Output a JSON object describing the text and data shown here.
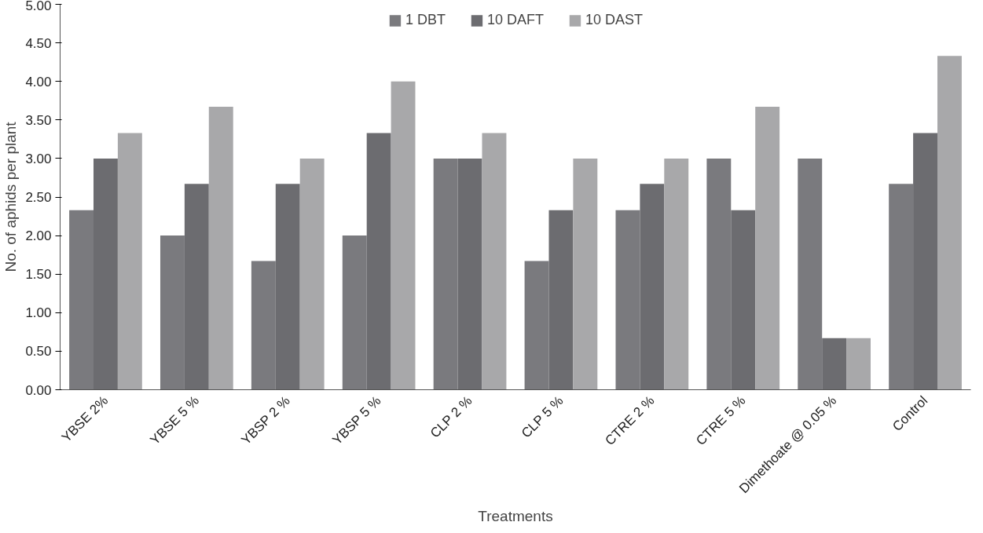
{
  "chart_data": {
    "type": "bar",
    "xlabel": "Treatments",
    "ylabel": "No. of aphids per plant",
    "categories": [
      "YBSE 2%",
      "YBSE 5 %",
      "YBSP 2 %",
      "YBSP 5 %",
      "CLP 2 %",
      "CLP 5 %",
      "CTRE 2 %",
      "CTRE 5 %",
      "Dimethoate @ 0.05 %",
      "Control"
    ],
    "series": [
      {
        "name": "1 DBT",
        "color": "#7a7a7e",
        "values": [
          2.33,
          2.0,
          1.67,
          2.0,
          3.0,
          1.67,
          2.33,
          3.0,
          3.0,
          2.67
        ]
      },
      {
        "name": "10 DAFT",
        "color": "#6c6c70",
        "values": [
          3.0,
          2.67,
          2.67,
          3.33,
          3.0,
          2.33,
          2.67,
          2.33,
          0.67,
          3.33
        ]
      },
      {
        "name": "10 DAST",
        "color": "#a8a8aa",
        "values": [
          3.33,
          3.67,
          3.0,
          4.0,
          3.33,
          3.0,
          3.0,
          3.67,
          0.67,
          4.33
        ]
      }
    ],
    "ylim": [
      0,
      5
    ],
    "yticks": [
      {
        "value": 0,
        "label": "0.00"
      },
      {
        "value": 0.5,
        "label": "0.50"
      },
      {
        "value": 1,
        "label": "1.00"
      },
      {
        "value": 1.5,
        "label": "1.50"
      },
      {
        "value": 2,
        "label": "2.00"
      },
      {
        "value": 2.5,
        "label": "2.50"
      },
      {
        "value": 3,
        "label": "3.00"
      },
      {
        "value": 3.5,
        "label": "3.50"
      },
      {
        "value": 4,
        "label": "4.00"
      },
      {
        "value": 4.5,
        "label": "4.50"
      },
      {
        "value": 5,
        "label": "5.00"
      }
    ],
    "grid": false,
    "legend": "top"
  }
}
